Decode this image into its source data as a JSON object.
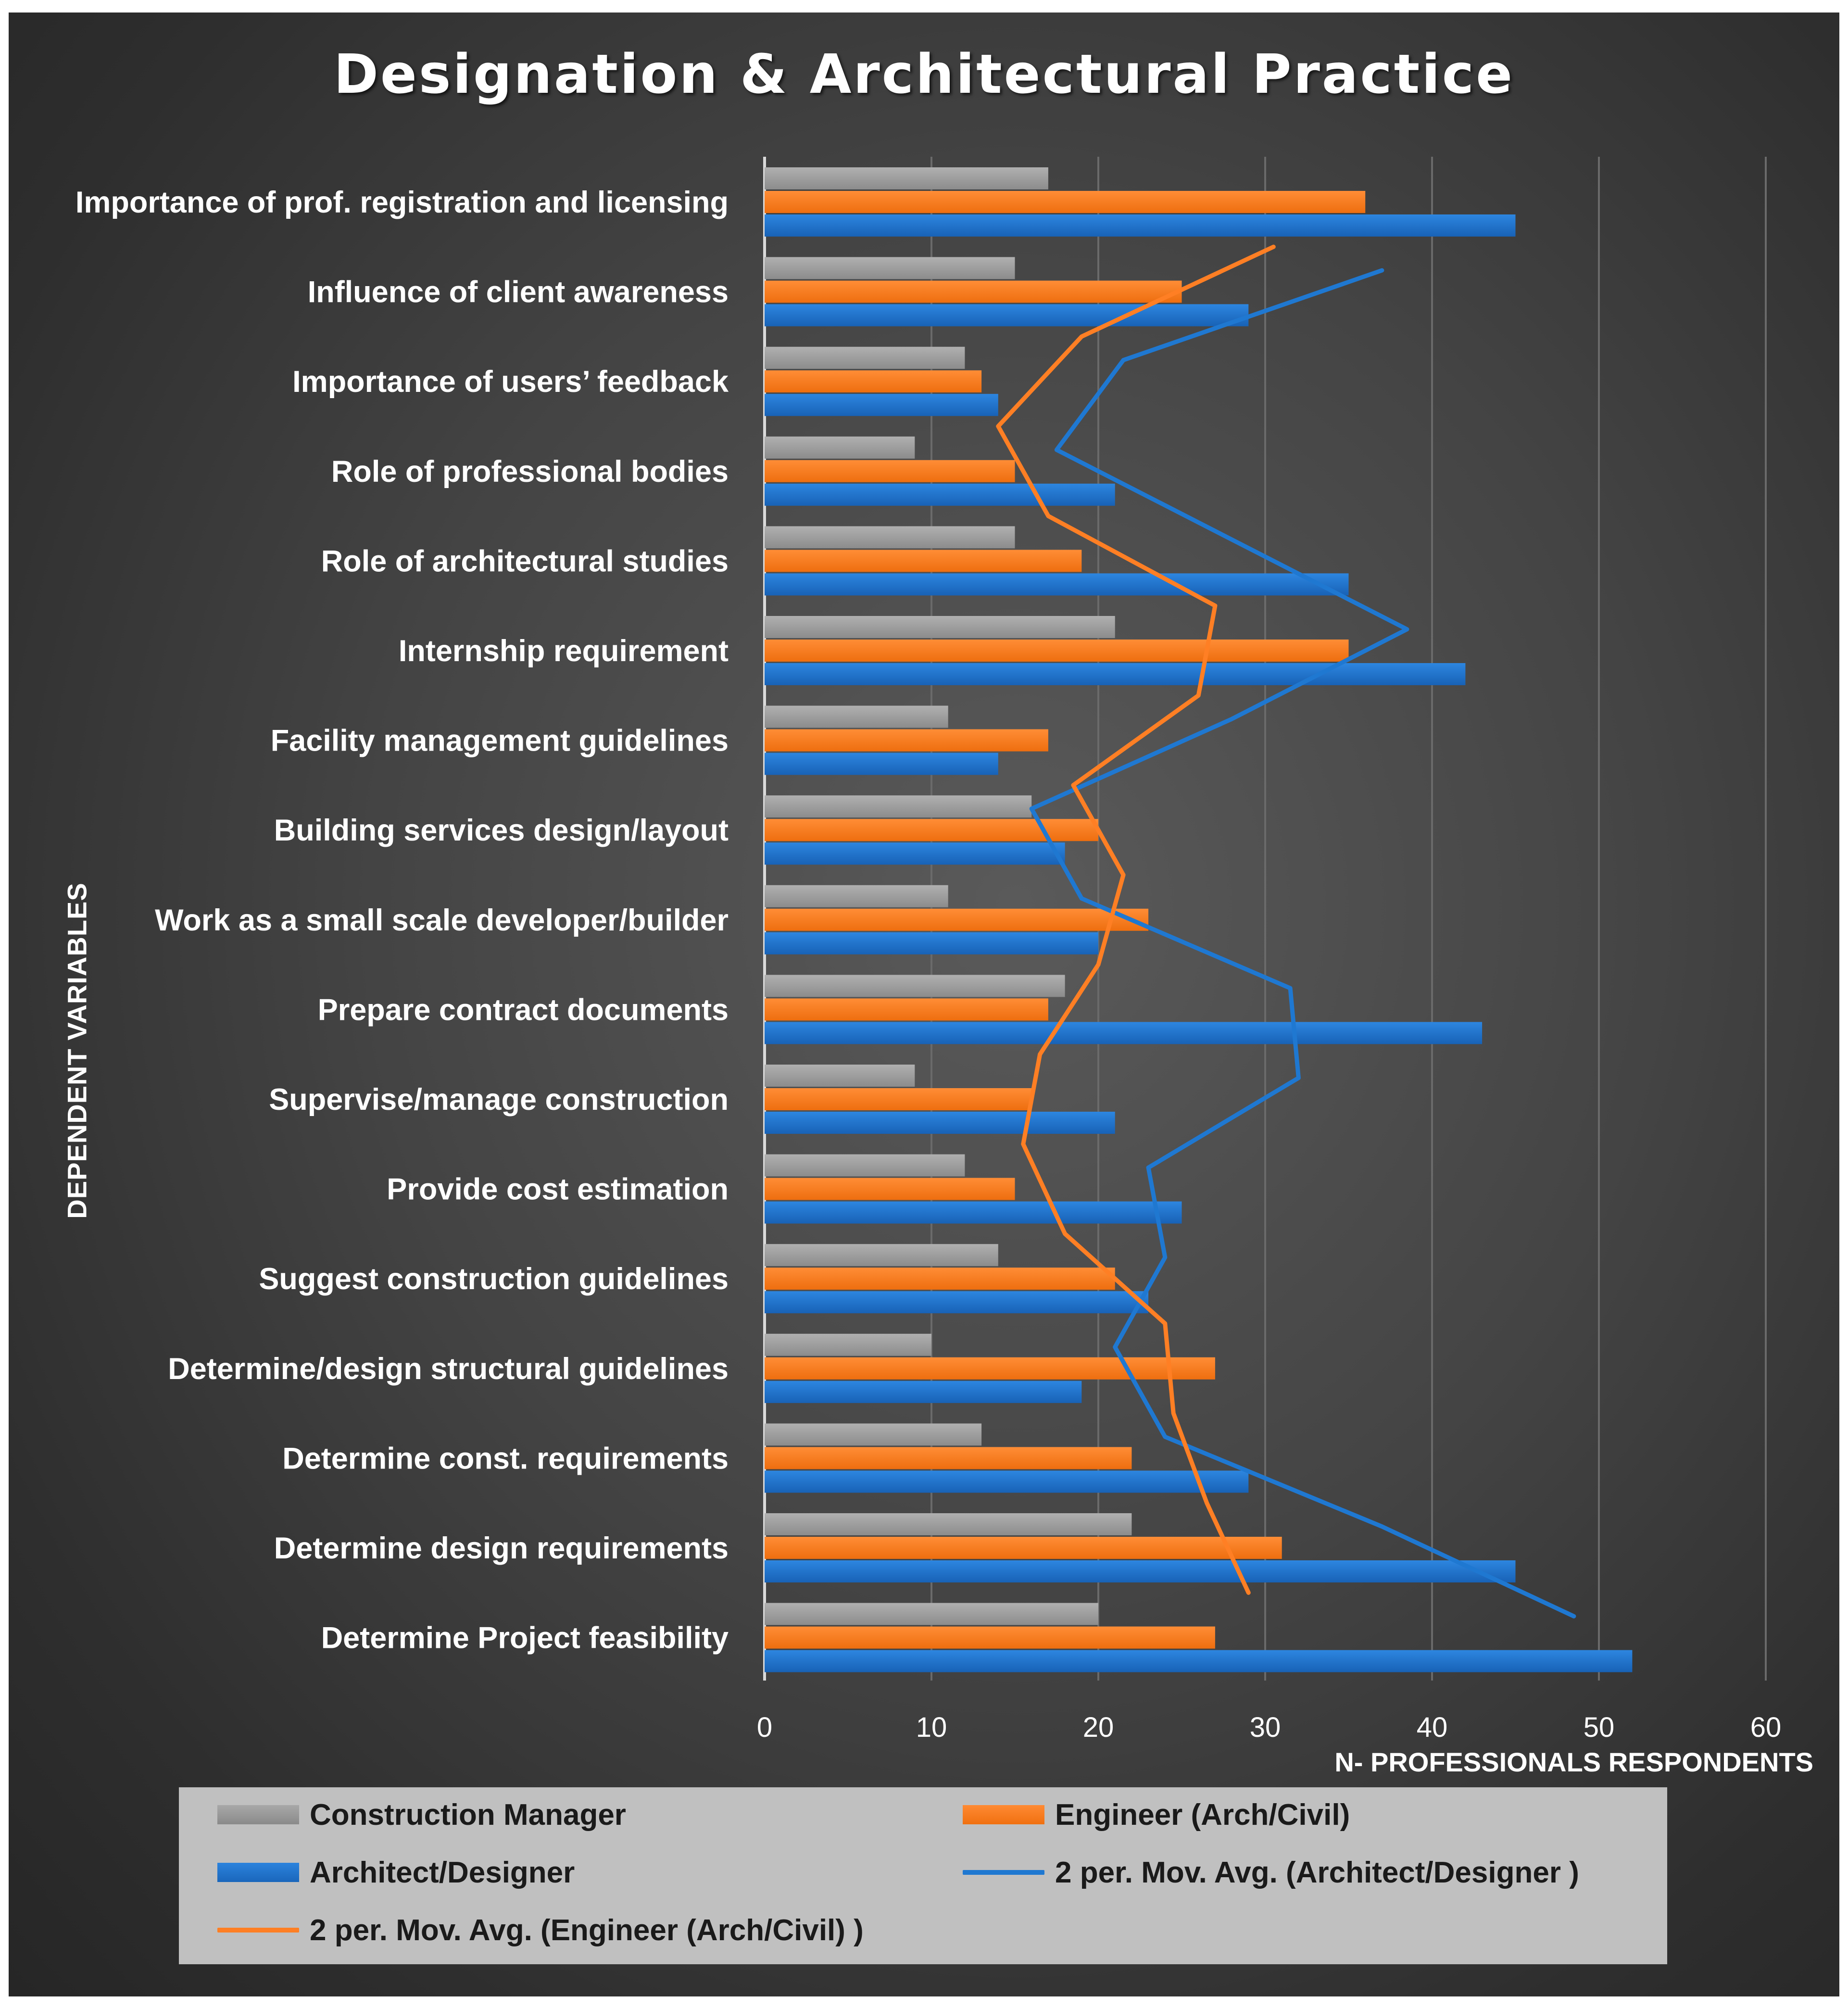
{
  "chart_data": {
    "type": "bar",
    "orientation": "horizontal",
    "title": "Designation & Architectural Practice",
    "xlabel": "N- PROFESSIONALS RESPONDENTS",
    "ylabel": "DEPENDENT VARIABLES",
    "xlim": [
      0,
      60
    ],
    "xticks": [
      "0",
      "10",
      "20",
      "30",
      "40",
      "50",
      "60"
    ],
    "grid": "vertical",
    "legend_position": "bottom",
    "categories": [
      "Importance of prof. registration and licensing",
      "Influence of client awareness",
      "Importance of users’ feedback",
      "Role of professional bodies",
      "Role of architectural studies",
      "Internship requirement",
      "Facility management guidelines",
      "Building services design/layout",
      "Work as a small scale developer/builder",
      "Prepare contract documents",
      "Supervise/manage construction",
      "Provide cost estimation",
      "Suggest construction guidelines",
      "Determine/design structural guidelines",
      "Determine const. requirements",
      "Determine design requirements",
      "Determine Project feasibility"
    ],
    "series": [
      {
        "name": "Construction Manager",
        "color": "#9a9a9a",
        "values": [
          17,
          15,
          12,
          9,
          15,
          21,
          11,
          16,
          11,
          18,
          9,
          12,
          14,
          10,
          13,
          22,
          20
        ]
      },
      {
        "name": "Engineer (Arch/Civil)",
        "color": "#f47b20",
        "values": [
          36,
          25,
          13,
          15,
          19,
          35,
          17,
          20,
          23,
          17,
          16,
          15,
          21,
          27,
          22,
          31,
          27
        ]
      },
      {
        "name": "Architect/Designer",
        "color": "#1f6fc9",
        "values": [
          45,
          29,
          14,
          21,
          35,
          42,
          14,
          18,
          20,
          43,
          21,
          25,
          23,
          19,
          29,
          45,
          52
        ]
      }
    ],
    "trendlines": [
      {
        "name": "2 per. Mov. Avg. (Architect/Designer )",
        "type": "moving_average",
        "period": 2,
        "source": "Architect/Designer",
        "color": "#1f78d1"
      },
      {
        "name": "2 per. Mov. Avg. (Engineer (Arch/Civil) )",
        "type": "moving_average",
        "period": 2,
        "source": "Engineer (Arch/Civil)",
        "color": "#ff7f24"
      }
    ]
  }
}
